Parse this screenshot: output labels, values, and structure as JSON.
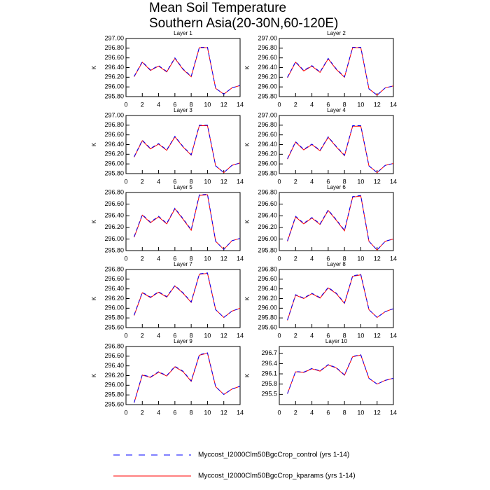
{
  "title": [
    "Mean Soil Temperature",
    "Southern Asia(20-30N,60-120E)"
  ],
  "legend": [
    {
      "name": "Myccost_I2000Clm50BgcCrop_control (yrs 1-14)",
      "color": "#0000ff",
      "dash": true
    },
    {
      "name": "Myccost_I2000Clm50BgcCrop_kparams (yrs 1-14)",
      "color": "#ff0000",
      "dash": false
    }
  ],
  "chart_data": [
    {
      "type": "line",
      "title": "Layer 1",
      "y_label": "K",
      "x": [
        1,
        2,
        3,
        4,
        5,
        6,
        7,
        8,
        9,
        10,
        11,
        12,
        13,
        14
      ],
      "xlim": [
        0,
        14
      ],
      "xticks": [
        0,
        2,
        4,
        6,
        8,
        10,
        12,
        14
      ],
      "ylim": [
        295.8,
        297.0
      ],
      "yticks": [
        {
          "value": 295.8,
          "label": "295.80"
        },
        {
          "value": 296.0,
          "label": "296.00"
        },
        {
          "value": 296.2,
          "label": "296.20"
        },
        {
          "value": 296.4,
          "label": "296.40"
        },
        {
          "value": 296.6,
          "label": "296.60"
        },
        {
          "value": 296.8,
          "label": "296.80"
        },
        {
          "value": 297.0,
          "label": "297.00"
        }
      ],
      "series": [
        {
          "color": "#ff0000",
          "dash": false,
          "values": [
            296.21,
            296.51,
            296.34,
            296.43,
            296.31,
            296.59,
            296.36,
            296.21,
            296.81,
            296.81,
            295.97,
            295.85,
            295.98,
            296.03
          ]
        },
        {
          "color": "#0000ff",
          "dash": true,
          "values": [
            296.22,
            296.52,
            296.35,
            296.44,
            296.32,
            296.6,
            296.37,
            296.22,
            296.82,
            296.82,
            295.97,
            295.85,
            295.98,
            296.03
          ]
        }
      ]
    },
    {
      "type": "line",
      "title": "Layer 2",
      "y_label": "K",
      "x": [
        1,
        2,
        3,
        4,
        5,
        6,
        7,
        8,
        9,
        10,
        11,
        12,
        13,
        14
      ],
      "xlim": [
        0,
        14
      ],
      "xticks": [
        0,
        2,
        4,
        6,
        8,
        10,
        12,
        14
      ],
      "ylim": [
        295.8,
        297.0
      ],
      "yticks": [
        {
          "value": 295.8,
          "label": "295.80"
        },
        {
          "value": 296.0,
          "label": "296.00"
        },
        {
          "value": 296.2,
          "label": "296.20"
        },
        {
          "value": 296.4,
          "label": "296.40"
        },
        {
          "value": 296.6,
          "label": "296.60"
        },
        {
          "value": 296.8,
          "label": "296.80"
        },
        {
          "value": 297.0,
          "label": "297.00"
        }
      ],
      "series": [
        {
          "color": "#ff0000",
          "dash": false,
          "values": [
            296.19,
            296.51,
            296.33,
            296.43,
            296.3,
            296.58,
            296.36,
            296.2,
            296.81,
            296.81,
            295.96,
            295.83,
            295.98,
            296.02
          ]
        },
        {
          "color": "#0000ff",
          "dash": true,
          "values": [
            296.2,
            296.52,
            296.34,
            296.44,
            296.31,
            296.59,
            296.37,
            296.21,
            296.82,
            296.82,
            295.96,
            295.83,
            295.98,
            296.02
          ]
        }
      ]
    },
    {
      "type": "line",
      "title": "Layer 3",
      "y_label": "K",
      "x": [
        1,
        2,
        3,
        4,
        5,
        6,
        7,
        8,
        9,
        10,
        11,
        12,
        13,
        14
      ],
      "xlim": [
        0,
        14
      ],
      "xticks": [
        0,
        2,
        4,
        6,
        8,
        10,
        12,
        14
      ],
      "ylim": [
        295.8,
        297.0
      ],
      "yticks": [
        {
          "value": 295.8,
          "label": "295.80"
        },
        {
          "value": 296.0,
          "label": "296.00"
        },
        {
          "value": 296.2,
          "label": "296.20"
        },
        {
          "value": 296.4,
          "label": "296.40"
        },
        {
          "value": 296.6,
          "label": "296.60"
        },
        {
          "value": 296.8,
          "label": "296.80"
        },
        {
          "value": 297.0,
          "label": "297.00"
        }
      ],
      "series": [
        {
          "color": "#ff0000",
          "dash": false,
          "values": [
            296.14,
            296.48,
            296.31,
            296.41,
            296.28,
            296.56,
            296.35,
            296.18,
            296.79,
            296.79,
            295.96,
            295.82,
            295.97,
            296.02
          ]
        },
        {
          "color": "#0000ff",
          "dash": true,
          "values": [
            296.15,
            296.49,
            296.32,
            296.42,
            296.29,
            296.57,
            296.36,
            296.19,
            296.8,
            296.8,
            295.96,
            295.82,
            295.97,
            296.02
          ]
        }
      ]
    },
    {
      "type": "line",
      "title": "Layer 4",
      "y_label": "K",
      "x": [
        1,
        2,
        3,
        4,
        5,
        6,
        7,
        8,
        9,
        10,
        11,
        12,
        13,
        14
      ],
      "xlim": [
        0,
        14
      ],
      "xticks": [
        0,
        2,
        4,
        6,
        8,
        10,
        12,
        14
      ],
      "ylim": [
        295.8,
        297.0
      ],
      "yticks": [
        {
          "value": 295.8,
          "label": "295.80"
        },
        {
          "value": 296.0,
          "label": "296.00"
        },
        {
          "value": 296.2,
          "label": "296.20"
        },
        {
          "value": 296.4,
          "label": "296.40"
        },
        {
          "value": 296.6,
          "label": "296.60"
        },
        {
          "value": 296.8,
          "label": "296.80"
        },
        {
          "value": 297.0,
          "label": "297.00"
        }
      ],
      "series": [
        {
          "color": "#ff0000",
          "dash": false,
          "values": [
            296.1,
            296.45,
            296.29,
            296.4,
            296.27,
            296.55,
            296.35,
            296.17,
            296.78,
            296.78,
            295.96,
            295.82,
            295.97,
            296.01
          ]
        },
        {
          "color": "#0000ff",
          "dash": true,
          "values": [
            296.11,
            296.46,
            296.3,
            296.41,
            296.28,
            296.56,
            296.36,
            296.18,
            296.79,
            296.79,
            295.96,
            295.82,
            295.97,
            296.01
          ]
        }
      ]
    },
    {
      "type": "line",
      "title": "Layer 5",
      "y_label": "K",
      "x": [
        1,
        2,
        3,
        4,
        5,
        6,
        7,
        8,
        9,
        10,
        11,
        12,
        13,
        14
      ],
      "xlim": [
        0,
        14
      ],
      "xticks": [
        0,
        2,
        4,
        6,
        8,
        10,
        12,
        14
      ],
      "ylim": [
        295.8,
        296.8
      ],
      "yticks": [
        {
          "value": 295.8,
          "label": "295.80"
        },
        {
          "value": 296.0,
          "label": "296.00"
        },
        {
          "value": 296.2,
          "label": "296.20"
        },
        {
          "value": 296.4,
          "label": "296.40"
        },
        {
          "value": 296.6,
          "label": "296.60"
        },
        {
          "value": 296.8,
          "label": "296.80"
        }
      ],
      "series": [
        {
          "color": "#ff0000",
          "dash": false,
          "values": [
            296.03,
            296.41,
            296.28,
            296.38,
            296.26,
            296.52,
            296.34,
            296.15,
            296.75,
            296.76,
            295.96,
            295.82,
            295.97,
            296.01
          ]
        },
        {
          "color": "#0000ff",
          "dash": true,
          "values": [
            296.04,
            296.42,
            296.29,
            296.39,
            296.27,
            296.53,
            296.35,
            296.16,
            296.76,
            296.77,
            295.96,
            295.82,
            295.97,
            296.01
          ]
        }
      ]
    },
    {
      "type": "line",
      "title": "Layer 6",
      "y_label": "K",
      "x": [
        1,
        2,
        3,
        4,
        5,
        6,
        7,
        8,
        9,
        10,
        11,
        12,
        13,
        14
      ],
      "xlim": [
        0,
        14
      ],
      "xticks": [
        0,
        2,
        4,
        6,
        8,
        10,
        12,
        14
      ],
      "ylim": [
        295.8,
        296.8
      ],
      "yticks": [
        {
          "value": 295.8,
          "label": "295.80"
        },
        {
          "value": 296.0,
          "label": "296.00"
        },
        {
          "value": 296.2,
          "label": "296.20"
        },
        {
          "value": 296.4,
          "label": "296.40"
        },
        {
          "value": 296.6,
          "label": "296.60"
        },
        {
          "value": 296.8,
          "label": "296.80"
        }
      ],
      "series": [
        {
          "color": "#ff0000",
          "dash": false,
          "values": [
            295.96,
            296.38,
            296.26,
            296.36,
            296.25,
            296.49,
            296.32,
            296.14,
            296.72,
            296.74,
            295.96,
            295.81,
            295.96,
            296.0
          ]
        },
        {
          "color": "#0000ff",
          "dash": true,
          "values": [
            295.97,
            296.39,
            296.27,
            296.37,
            296.26,
            296.5,
            296.33,
            296.15,
            296.73,
            296.75,
            295.96,
            295.81,
            295.96,
            296.0
          ]
        }
      ]
    },
    {
      "type": "line",
      "title": "Layer 7",
      "y_label": "K",
      "x": [
        1,
        2,
        3,
        4,
        5,
        6,
        7,
        8,
        9,
        10,
        11,
        12,
        13,
        14
      ],
      "xlim": [
        0,
        14
      ],
      "xticks": [
        0,
        2,
        4,
        6,
        8,
        10,
        12,
        14
      ],
      "ylim": [
        295.6,
        296.8
      ],
      "yticks": [
        {
          "value": 295.6,
          "label": "295.60"
        },
        {
          "value": 295.8,
          "label": "295.80"
        },
        {
          "value": 296.0,
          "label": "296.00"
        },
        {
          "value": 296.2,
          "label": "296.20"
        },
        {
          "value": 296.4,
          "label": "296.40"
        },
        {
          "value": 296.6,
          "label": "296.60"
        },
        {
          "value": 296.8,
          "label": "296.80"
        }
      ],
      "series": [
        {
          "color": "#ff0000",
          "dash": false,
          "values": [
            295.85,
            296.32,
            296.22,
            296.33,
            296.23,
            296.46,
            296.31,
            296.12,
            296.7,
            296.72,
            295.97,
            295.81,
            295.94,
            296.0
          ]
        },
        {
          "color": "#0000ff",
          "dash": true,
          "values": [
            295.86,
            296.33,
            296.23,
            296.34,
            296.24,
            296.47,
            296.32,
            296.13,
            296.71,
            296.73,
            295.97,
            295.81,
            295.94,
            296.0
          ]
        }
      ]
    },
    {
      "type": "line",
      "title": "Layer 8",
      "y_label": "K",
      "x": [
        1,
        2,
        3,
        4,
        5,
        6,
        7,
        8,
        9,
        10,
        11,
        12,
        13,
        14
      ],
      "xlim": [
        0,
        14
      ],
      "xticks": [
        0,
        2,
        4,
        6,
        8,
        10,
        12,
        14
      ],
      "ylim": [
        295.6,
        296.8
      ],
      "yticks": [
        {
          "value": 295.6,
          "label": "295.60"
        },
        {
          "value": 295.8,
          "label": "295.80"
        },
        {
          "value": 296.0,
          "label": "296.00"
        },
        {
          "value": 296.2,
          "label": "296.20"
        },
        {
          "value": 296.4,
          "label": "296.40"
        },
        {
          "value": 296.6,
          "label": "296.60"
        },
        {
          "value": 296.8,
          "label": "296.80"
        }
      ],
      "series": [
        {
          "color": "#ff0000",
          "dash": false,
          "values": [
            295.75,
            296.27,
            296.2,
            296.3,
            296.21,
            296.42,
            296.3,
            296.1,
            296.66,
            296.69,
            295.97,
            295.81,
            295.93,
            295.99
          ]
        },
        {
          "color": "#0000ff",
          "dash": true,
          "values": [
            295.76,
            296.28,
            296.21,
            296.31,
            296.22,
            296.43,
            296.31,
            296.11,
            296.67,
            296.7,
            295.97,
            295.81,
            295.93,
            295.99
          ]
        }
      ]
    },
    {
      "type": "line",
      "title": "Layer 9",
      "y_label": "K",
      "x": [
        1,
        2,
        3,
        4,
        5,
        6,
        7,
        8,
        9,
        10,
        11,
        12,
        13,
        14
      ],
      "xlim": [
        0,
        14
      ],
      "xticks": [
        0,
        2,
        4,
        6,
        8,
        10,
        12,
        14
      ],
      "ylim": [
        295.6,
        296.8
      ],
      "yticks": [
        {
          "value": 295.6,
          "label": "295.60"
        },
        {
          "value": 295.8,
          "label": "295.80"
        },
        {
          "value": 296.0,
          "label": "296.00"
        },
        {
          "value": 296.2,
          "label": "296.20"
        },
        {
          "value": 296.4,
          "label": "296.40"
        },
        {
          "value": 296.6,
          "label": "296.60"
        },
        {
          "value": 296.8,
          "label": "296.80"
        }
      ],
      "series": [
        {
          "color": "#ff0000",
          "dash": false,
          "values": [
            295.64,
            296.21,
            296.16,
            296.27,
            296.19,
            296.38,
            296.28,
            296.08,
            296.62,
            296.66,
            295.97,
            295.81,
            295.92,
            295.98
          ]
        },
        {
          "color": "#0000ff",
          "dash": true,
          "values": [
            295.64,
            296.22,
            296.17,
            296.28,
            296.2,
            296.39,
            296.29,
            296.09,
            296.63,
            296.67,
            295.97,
            295.81,
            295.92,
            295.98
          ]
        }
      ]
    },
    {
      "type": "line",
      "title": "Layer 10",
      "y_label": "K",
      "x": [
        1,
        2,
        3,
        4,
        5,
        6,
        7,
        8,
        9,
        10,
        11,
        12,
        13,
        14
      ],
      "xlim": [
        0,
        14
      ],
      "xticks": [
        0,
        2,
        4,
        6,
        8,
        10,
        12,
        14
      ],
      "ylim": [
        295.2,
        296.9
      ],
      "yticks": [
        295.5,
        295.8,
        296.1,
        296.4,
        296.7
      ],
      "series": [
        {
          "color": "#ff0000",
          "dash": false,
          "values": [
            295.52,
            296.16,
            296.14,
            296.25,
            296.18,
            296.36,
            296.27,
            296.06,
            296.6,
            296.65,
            295.97,
            295.8,
            295.91,
            295.97
          ]
        },
        {
          "color": "#0000ff",
          "dash": true,
          "values": [
            295.52,
            296.17,
            296.15,
            296.26,
            296.19,
            296.37,
            296.28,
            296.07,
            296.61,
            296.66,
            295.97,
            295.8,
            295.91,
            295.97
          ]
        }
      ]
    }
  ]
}
